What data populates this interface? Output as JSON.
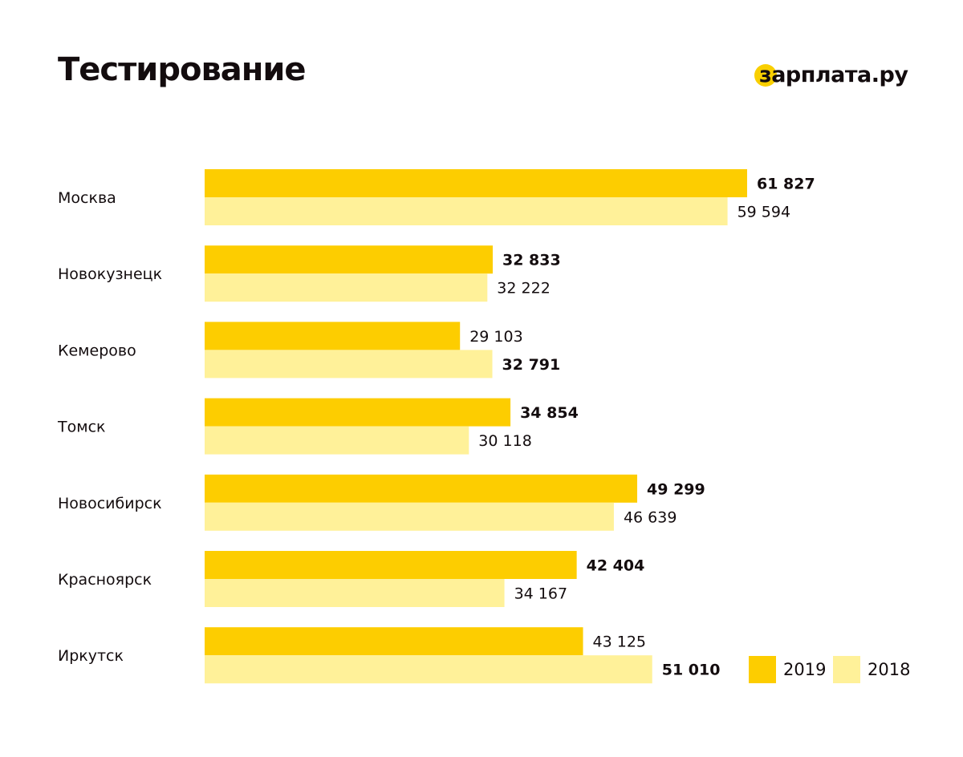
{
  "title": "Тестирование",
  "logo_text": "зарплата.ру",
  "colors": {
    "series_2019": "#fdcd00",
    "series_2018": "#fff199",
    "text": "#130c0e",
    "logo_accent": "#f9cf00"
  },
  "legend": [
    {
      "label": "2019",
      "color": "#fdcd00"
    },
    {
      "label": "2018",
      "color": "#fff199"
    }
  ],
  "chart_data": {
    "type": "bar",
    "orientation": "horizontal",
    "title": "Тестирование",
    "categories": [
      "Москва",
      "Новокузнецк",
      "Кемерово",
      "Томск",
      "Новосибирск",
      "Красноярск",
      "Иркутск"
    ],
    "series": [
      {
        "name": "2019",
        "values": [
          61827,
          32833,
          29103,
          34854,
          49299,
          42404,
          43125
        ],
        "labels": [
          "61 827",
          "32 833",
          "29 103",
          "34 854",
          "49 299",
          "42 404",
          "43 125"
        ],
        "bold": [
          true,
          true,
          false,
          true,
          true,
          true,
          false
        ]
      },
      {
        "name": "2018",
        "values": [
          59594,
          32222,
          32791,
          30118,
          46639,
          34167,
          51010
        ],
        "labels": [
          "59 594",
          "32 222",
          "32 791",
          "30 118",
          "46 639",
          "34 167",
          "51 010"
        ],
        "bold": [
          false,
          false,
          true,
          false,
          false,
          false,
          true
        ]
      }
    ],
    "legend_position": "bottom-right",
    "grid": false,
    "xlim": [
      0,
      61827
    ]
  }
}
